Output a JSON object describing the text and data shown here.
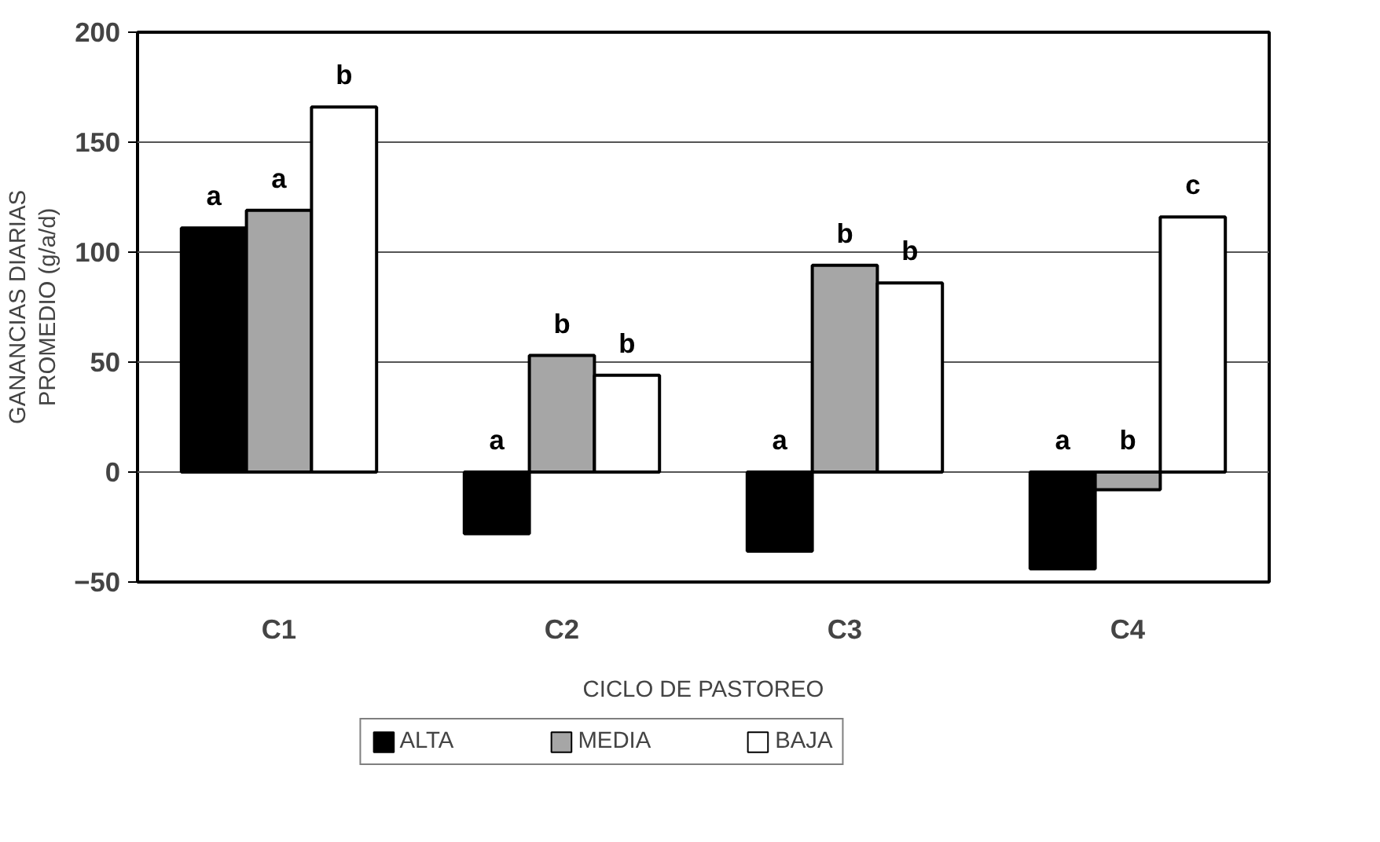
{
  "chart_data": {
    "type": "bar",
    "xlabel": "CICLO DE PASTOREO",
    "ylabel": "GANANCIAS DIARIAS\nPROMEDIO (g/a/d)",
    "categories": [
      "C1",
      "C2",
      "C3",
      "C4"
    ],
    "series": [
      {
        "name": "ALTA",
        "color": "#000000",
        "values": [
          111,
          -28,
          -36,
          -44
        ],
        "value_labels": [
          "a",
          "a",
          "a",
          "a"
        ]
      },
      {
        "name": "MEDIA",
        "color": "#a6a6a6",
        "values": [
          119,
          53,
          94,
          -8
        ],
        "value_labels": [
          "a",
          "b",
          "b",
          "b"
        ]
      },
      {
        "name": "BAJA",
        "color": "#ffffff",
        "values": [
          166,
          44,
          86,
          116
        ],
        "value_labels": [
          "b",
          "b",
          "b",
          "c"
        ]
      }
    ],
    "ylim": [
      -50,
      200
    ],
    "yticks": [
      -50,
      0,
      50,
      100,
      150,
      200
    ],
    "grid": "y",
    "legend": "bottom"
  }
}
